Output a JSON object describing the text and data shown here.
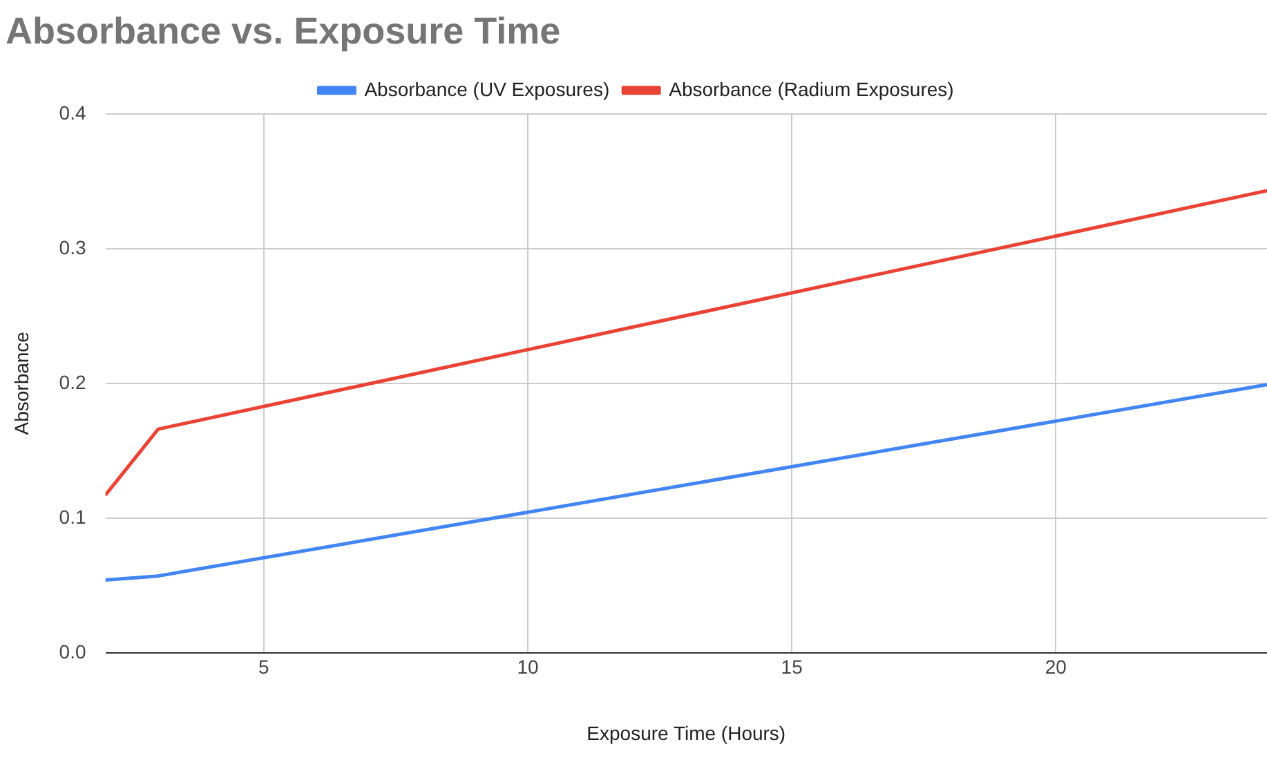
{
  "chart_data": {
    "type": "line",
    "title": "Absorbance vs. Exposure Time",
    "xlabel": "Exposure Time (Hours)",
    "ylabel": "Absorbance",
    "x": [
      2,
      3,
      24
    ],
    "series": [
      {
        "name": "Absorbance (UV Exposures)",
        "color": "#4285f4",
        "values": [
          0.054,
          0.057,
          0.199
        ]
      },
      {
        "name": "Absorbance (Radium Exposures)",
        "color": "#ea4335",
        "values": [
          0.117,
          0.166,
          0.343
        ]
      }
    ],
    "xlim": [
      2,
      24
    ],
    "xticks": [
      5,
      10,
      15,
      20
    ],
    "ylim": [
      0,
      0.4
    ],
    "yticks": [
      {
        "value": 0,
        "label": "0.0"
      },
      0.1,
      0.2,
      0.3,
      0.4
    ],
    "grid": true,
    "legend": "top",
    "marker": "none",
    "line_style": "solid"
  }
}
